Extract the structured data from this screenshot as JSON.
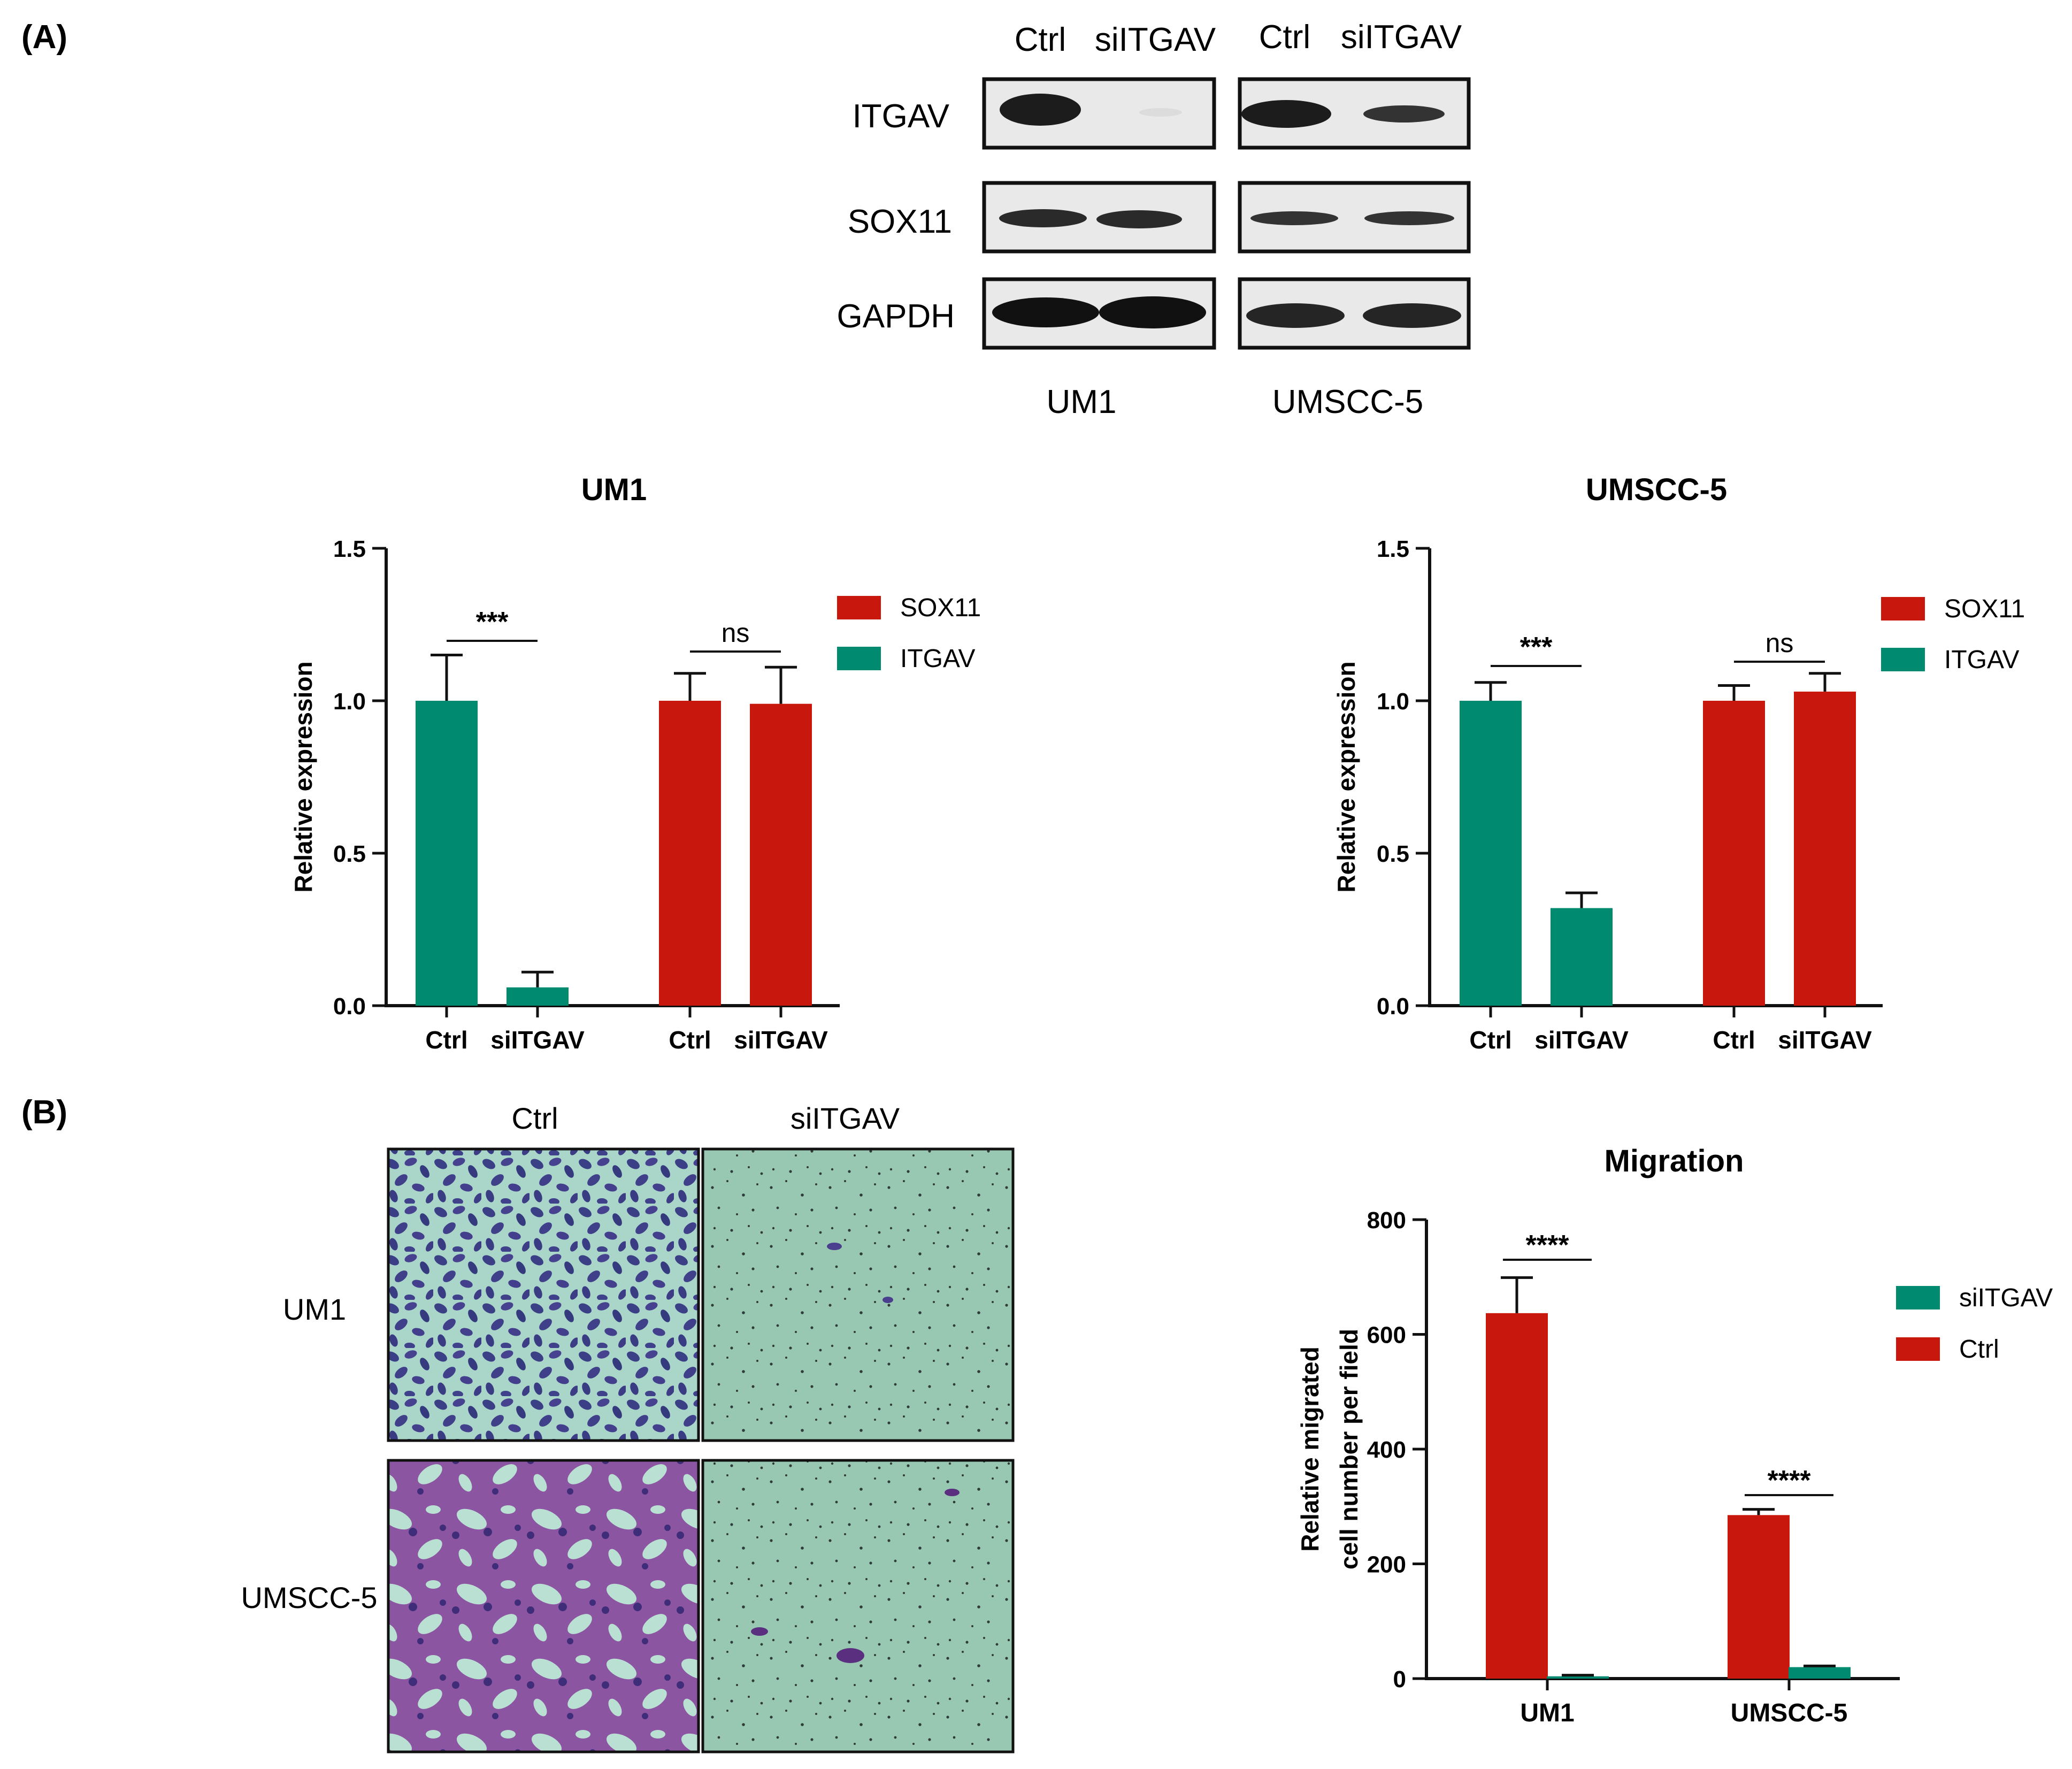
{
  "panel_labels": {
    "a": "(A)",
    "b": "(B)"
  },
  "colors": {
    "teal": "#008A70",
    "red": "#C8170C",
    "black": "#111111"
  },
  "western_blot": {
    "lane_labels": [
      "Ctrl",
      "siITGAV",
      "Ctrl",
      "siITGAV"
    ],
    "row_labels": [
      "ITGAV",
      "SOX11",
      "GAPDH"
    ],
    "cell_lines": [
      "UM1",
      "UMSCC-5"
    ]
  },
  "migration_images": {
    "column_labels": [
      "Ctrl",
      "siITGAV"
    ],
    "row_labels": [
      "UM1",
      "UMSCC-5"
    ]
  },
  "chart_data": [
    {
      "type": "bar",
      "title": "UM1",
      "ylabel": "Relative expression",
      "xlabel": "",
      "ylim": [
        0,
        1.5
      ],
      "yticks": [
        "0.0",
        "0.5",
        "1.0",
        "1.5"
      ],
      "categories": [
        "Ctrl",
        "siITGAV",
        "Ctrl",
        "siITGAV"
      ],
      "groups": [
        "ITGAV",
        "ITGAV",
        "SOX11",
        "SOX11"
      ],
      "values": [
        1.0,
        0.06,
        1.0,
        0.99
      ],
      "errors": [
        0.15,
        0.05,
        0.09,
        0.12
      ],
      "legend": [
        {
          "name": "SOX11",
          "color": "#C8170C"
        },
        {
          "name": "ITGAV",
          "color": "#008A70"
        }
      ],
      "legend_position": "right",
      "significance": [
        "***",
        "ns"
      ]
    },
    {
      "type": "bar",
      "title": "UMSCC-5",
      "ylabel": "Relative expression",
      "xlabel": "",
      "ylim": [
        0,
        1.5
      ],
      "yticks": [
        "0.0",
        "0.5",
        "1.0",
        "1.5"
      ],
      "categories": [
        "Ctrl",
        "siITGAV",
        "Ctrl",
        "siITGAV"
      ],
      "groups": [
        "ITGAV",
        "ITGAV",
        "SOX11",
        "SOX11"
      ],
      "values": [
        1.0,
        0.32,
        1.0,
        1.03
      ],
      "errors": [
        0.06,
        0.05,
        0.05,
        0.06
      ],
      "legend": [
        {
          "name": "SOX11",
          "color": "#C8170C"
        },
        {
          "name": "ITGAV",
          "color": "#008A70"
        }
      ],
      "legend_position": "right",
      "significance": [
        "***",
        "ns"
      ]
    },
    {
      "type": "bar",
      "title": "Migration",
      "ylabel": "Relative migrated cell number per field",
      "ylabel_lines": [
        "Relative migrated",
        "cell number per field"
      ],
      "xlabel": "",
      "ylim": [
        0,
        800
      ],
      "yticks": [
        "0",
        "200",
        "400",
        "600",
        "800"
      ],
      "categories": [
        "UM1",
        "UMSCC-5"
      ],
      "series": [
        {
          "name": "Ctrl",
          "values": [
            637,
            285
          ],
          "errors": [
            62,
            10
          ],
          "color": "#C8170C"
        },
        {
          "name": "siITGAV",
          "values": [
            4,
            20
          ],
          "errors": [
            2,
            2
          ],
          "color": "#008A70"
        }
      ],
      "legend": [
        {
          "name": "siITGAV",
          "color": "#008A70"
        },
        {
          "name": "Ctrl",
          "color": "#C8170C"
        }
      ],
      "legend_position": "right",
      "significance": [
        "****",
        "****"
      ]
    }
  ]
}
